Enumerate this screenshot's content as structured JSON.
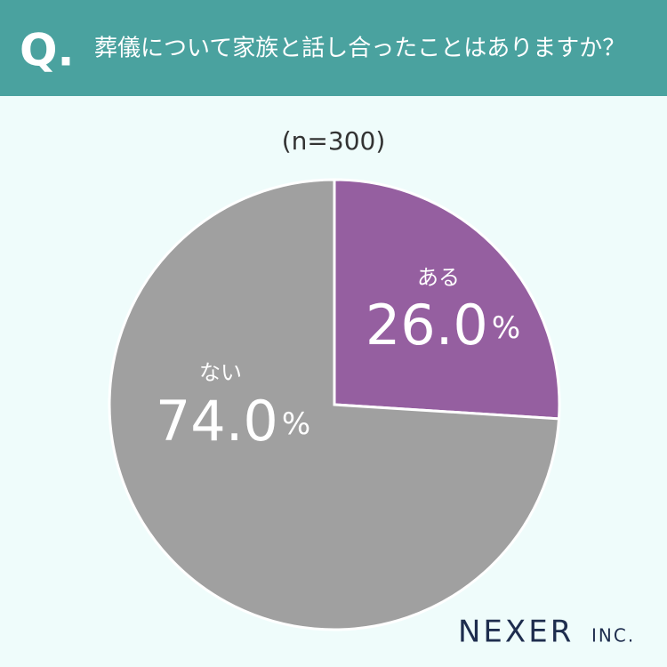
{
  "chart_data": {
    "type": "pie",
    "question_mark": "Q.",
    "title": "葬儀について家族と話し合ったことはありますか？",
    "subtitle": "(n=300)",
    "categories": [
      "ある",
      "ない"
    ],
    "values": [
      26.0,
      74.0
    ],
    "value_labels": [
      "26.0",
      "74.0"
    ],
    "unit": "%",
    "colors": [
      "#955fa0",
      "#a0a0a0"
    ],
    "logo": "NEXER",
    "logo_suffix": "INC."
  }
}
